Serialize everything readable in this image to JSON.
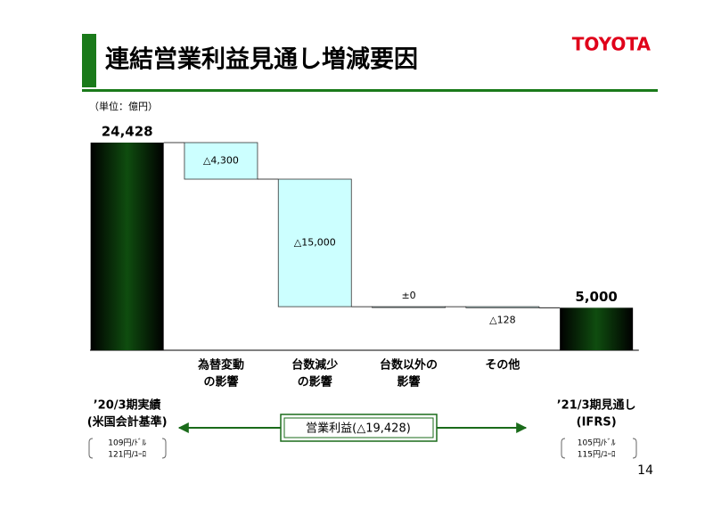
{
  "header": {
    "title": "連結営業利益見通し増減要因",
    "logo": "TOYOTA"
  },
  "unit": "（単位：億円）",
  "page_number": "14",
  "chart_data": {
    "type": "waterfall",
    "categories": [
      [
        "’20/3期実績",
        "(米国会計基準)"
      ],
      [
        "為替変動",
        "の影響"
      ],
      [
        "台数減少",
        "の影響"
      ],
      [
        "台数以外の",
        "影響"
      ],
      [
        "その他"
      ],
      [
        "’21/3期見通し",
        "(IFRS)"
      ]
    ],
    "values": [
      24428,
      -4300,
      -15000,
      0,
      -128,
      5000
    ],
    "value_labels": [
      "24,428",
      "△4,300",
      "△15,000",
      "±0",
      "△128",
      "5,000"
    ],
    "total_color": "#0f4d0f",
    "decrease_color": "#ccffff",
    "start_rates": [
      "109円/ﾄﾞﾙ",
      "121円/ﾕｰﾛ"
    ],
    "end_rates": [
      "105円/ﾄﾞﾙ",
      "115円/ﾕｰﾛ"
    ],
    "annotation": "営業利益(△19,428)"
  }
}
